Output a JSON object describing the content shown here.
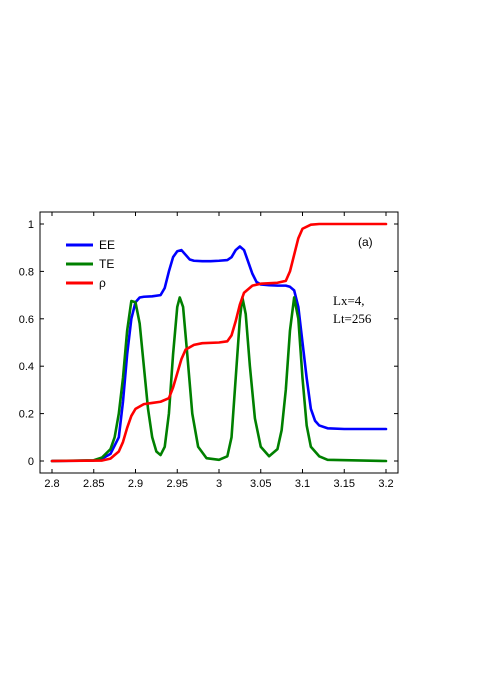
{
  "chart_data": {
    "type": "line",
    "xlim": [
      2.8,
      3.2
    ],
    "ylim": [
      0,
      1
    ],
    "x_ticks": [
      "2.8",
      "2.85",
      "2.9",
      "2.95",
      "3",
      "3.05",
      "3.1",
      "3.15",
      "3.2"
    ],
    "y_ticks": [
      "0",
      "0.2",
      "0.4",
      "0.6",
      "0.8",
      "1"
    ],
    "legend_position": "top-left",
    "panel_label": "(a)",
    "annotation_line1": "Lx=4,",
    "annotation_line2": "Lt=256",
    "series": [
      {
        "name": "EE",
        "color": "#0000ff",
        "points": [
          [
            2.8,
            0
          ],
          [
            2.85,
            0.002
          ],
          [
            2.86,
            0.01
          ],
          [
            2.87,
            0.03
          ],
          [
            2.88,
            0.1
          ],
          [
            2.885,
            0.25
          ],
          [
            2.89,
            0.45
          ],
          [
            2.895,
            0.6
          ],
          [
            2.9,
            0.67
          ],
          [
            2.905,
            0.69
          ],
          [
            2.91,
            0.693
          ],
          [
            2.92,
            0.695
          ],
          [
            2.93,
            0.7
          ],
          [
            2.935,
            0.73
          ],
          [
            2.94,
            0.8
          ],
          [
            2.945,
            0.86
          ],
          [
            2.95,
            0.885
          ],
          [
            2.955,
            0.89
          ],
          [
            2.96,
            0.87
          ],
          [
            2.965,
            0.85
          ],
          [
            2.97,
            0.845
          ],
          [
            2.98,
            0.843
          ],
          [
            2.99,
            0.843
          ],
          [
            3.0,
            0.845
          ],
          [
            3.01,
            0.848
          ],
          [
            3.015,
            0.86
          ],
          [
            3.02,
            0.89
          ],
          [
            3.025,
            0.905
          ],
          [
            3.03,
            0.89
          ],
          [
            3.035,
            0.84
          ],
          [
            3.04,
            0.79
          ],
          [
            3.045,
            0.755
          ],
          [
            3.05,
            0.745
          ],
          [
            3.06,
            0.742
          ],
          [
            3.07,
            0.74
          ],
          [
            3.08,
            0.74
          ],
          [
            3.085,
            0.735
          ],
          [
            3.09,
            0.72
          ],
          [
            3.095,
            0.65
          ],
          [
            3.1,
            0.5
          ],
          [
            3.105,
            0.35
          ],
          [
            3.11,
            0.22
          ],
          [
            3.115,
            0.17
          ],
          [
            3.12,
            0.15
          ],
          [
            3.13,
            0.138
          ],
          [
            3.15,
            0.135
          ],
          [
            3.2,
            0.135
          ]
        ]
      },
      {
        "name": "TE",
        "color": "#008000",
        "points": [
          [
            2.8,
            0
          ],
          [
            2.85,
            0.003
          ],
          [
            2.86,
            0.015
          ],
          [
            2.87,
            0.05
          ],
          [
            2.875,
            0.1
          ],
          [
            2.88,
            0.2
          ],
          [
            2.885,
            0.35
          ],
          [
            2.89,
            0.55
          ],
          [
            2.895,
            0.675
          ],
          [
            2.9,
            0.67
          ],
          [
            2.905,
            0.58
          ],
          [
            2.91,
            0.4
          ],
          [
            2.915,
            0.22
          ],
          [
            2.92,
            0.1
          ],
          [
            2.925,
            0.04
          ],
          [
            2.93,
            0.025
          ],
          [
            2.935,
            0.06
          ],
          [
            2.94,
            0.2
          ],
          [
            2.945,
            0.45
          ],
          [
            2.95,
            0.65
          ],
          [
            2.953,
            0.69
          ],
          [
            2.957,
            0.65
          ],
          [
            2.962,
            0.45
          ],
          [
            2.968,
            0.2
          ],
          [
            2.975,
            0.06
          ],
          [
            2.985,
            0.012
          ],
          [
            3.0,
            0.005
          ],
          [
            3.01,
            0.02
          ],
          [
            3.015,
            0.1
          ],
          [
            3.02,
            0.35
          ],
          [
            3.025,
            0.6
          ],
          [
            3.028,
            0.69
          ],
          [
            3.032,
            0.62
          ],
          [
            3.037,
            0.4
          ],
          [
            3.043,
            0.18
          ],
          [
            3.05,
            0.06
          ],
          [
            3.06,
            0.02
          ],
          [
            3.07,
            0.05
          ],
          [
            3.075,
            0.13
          ],
          [
            3.08,
            0.3
          ],
          [
            3.085,
            0.55
          ],
          [
            3.09,
            0.69
          ],
          [
            3.095,
            0.6
          ],
          [
            3.1,
            0.35
          ],
          [
            3.105,
            0.15
          ],
          [
            3.11,
            0.06
          ],
          [
            3.12,
            0.02
          ],
          [
            3.13,
            0.005
          ],
          [
            3.2,
            0
          ]
        ]
      },
      {
        "name": "ρ",
        "color": "#ff0000",
        "points": [
          [
            2.8,
            0
          ],
          [
            2.86,
            0.002
          ],
          [
            2.87,
            0.01
          ],
          [
            2.88,
            0.04
          ],
          [
            2.885,
            0.08
          ],
          [
            2.89,
            0.14
          ],
          [
            2.895,
            0.19
          ],
          [
            2.9,
            0.22
          ],
          [
            2.91,
            0.24
          ],
          [
            2.92,
            0.245
          ],
          [
            2.93,
            0.25
          ],
          [
            2.94,
            0.265
          ],
          [
            2.945,
            0.31
          ],
          [
            2.95,
            0.37
          ],
          [
            2.955,
            0.43
          ],
          [
            2.96,
            0.47
          ],
          [
            2.97,
            0.49
          ],
          [
            2.98,
            0.497
          ],
          [
            3.0,
            0.5
          ],
          [
            3.01,
            0.505
          ],
          [
            3.015,
            0.53
          ],
          [
            3.02,
            0.59
          ],
          [
            3.025,
            0.66
          ],
          [
            3.03,
            0.71
          ],
          [
            3.04,
            0.74
          ],
          [
            3.05,
            0.748
          ],
          [
            3.07,
            0.752
          ],
          [
            3.08,
            0.76
          ],
          [
            3.085,
            0.8
          ],
          [
            3.09,
            0.87
          ],
          [
            3.095,
            0.94
          ],
          [
            3.1,
            0.98
          ],
          [
            3.11,
            0.997
          ],
          [
            3.12,
            1.0
          ],
          [
            3.2,
            1.0
          ]
        ]
      }
    ]
  }
}
